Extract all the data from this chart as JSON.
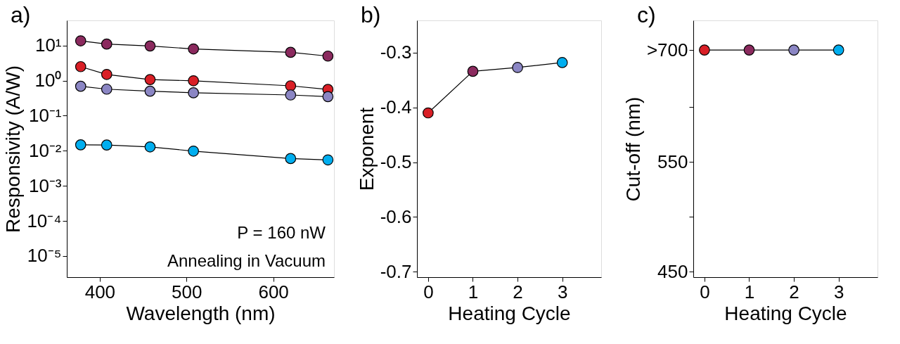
{
  "chart_data": [
    {
      "type": "line",
      "title": "a)",
      "xlabel": "Wavelength (nm)",
      "ylabel": "Responsivity (A/W)",
      "log": "y",
      "marker": "circle",
      "line_style": "solid",
      "grid": false,
      "x": [
        378,
        408,
        458,
        508,
        620,
        663
      ],
      "xlim": [
        362,
        670
      ],
      "xticks": [
        400,
        500,
        600
      ],
      "ylim": [
        2.5e-06,
        52
      ],
      "yticks": [
        {
          "value": 10,
          "label": "10¹"
        },
        {
          "value": 1,
          "label": "10⁰"
        },
        {
          "value": 0.1,
          "label": "10⁻¹"
        },
        {
          "value": 0.01,
          "label": "10⁻²"
        },
        {
          "value": 0.001,
          "label": "10⁻³"
        },
        {
          "value": 0.0001,
          "label": "10⁻⁴"
        },
        {
          "value": 1e-05,
          "label": "10⁻⁵"
        }
      ],
      "series": [
        {
          "color": "#8b2a5e",
          "values": [
            13.6,
            11,
            9.7,
            8.0,
            6.4,
            5.0
          ]
        },
        {
          "color": "#d91f26",
          "values": [
            2.5,
            1.5,
            1.07,
            0.99,
            0.71,
            0.56
          ]
        },
        {
          "color": "#8b86c4",
          "values": [
            0.69,
            0.57,
            0.5,
            0.45,
            0.39,
            0.35
          ]
        },
        {
          "color": "#00aeef",
          "values": [
            0.0148,
            0.0146,
            0.0129,
            0.0098,
            0.006,
            0.0055
          ]
        }
      ],
      "annotations": [
        "P = 160 nW",
        "Annealing in Vacuum"
      ]
    },
    {
      "type": "line",
      "title": "b)",
      "xlabel": "Heating Cycle",
      "ylabel": "Exponent",
      "marker": "circle",
      "line_style": "solid",
      "grid": false,
      "x": [
        0,
        1,
        2,
        3
      ],
      "xlim": [
        -0.25,
        3.87
      ],
      "xticks": [
        0,
        1,
        2,
        3
      ],
      "ylim": [
        -0.71,
        -0.241
      ],
      "yticks": [
        -0.3,
        -0.4,
        -0.5,
        -0.6,
        -0.7
      ],
      "series": [
        {
          "colors": [
            "#d91f26",
            "#8b2a5e",
            "#8b86c4",
            "#00aeef"
          ],
          "values": [
            -0.41,
            -0.334,
            -0.327,
            -0.318
          ]
        }
      ]
    },
    {
      "type": "line",
      "title": "c)",
      "xlabel": "Heating Cycle",
      "ylabel": "Cut-off (nm)",
      "marker": "circle",
      "line_style": "solid",
      "grid": false,
      "x": [
        0,
        1,
        2,
        3
      ],
      "xlim": [
        -0.25,
        3.87
      ],
      "xticks": [
        0,
        1,
        2,
        3
      ],
      "ylim": [
        445,
        679
      ],
      "yticks": [
        450,
        {
          "value": 500,
          "label": null
        },
        550,
        {
          "value": 600,
          "label": null
        },
        {
          "value": 652,
          "label": ">700"
        }
      ],
      "series": [
        {
          "colors": [
            "#d91f26",
            "#8b2a5e",
            "#8b86c4",
            "#00aeef"
          ],
          "values": [
            652,
            652,
            652,
            652
          ]
        }
      ]
    }
  ]
}
